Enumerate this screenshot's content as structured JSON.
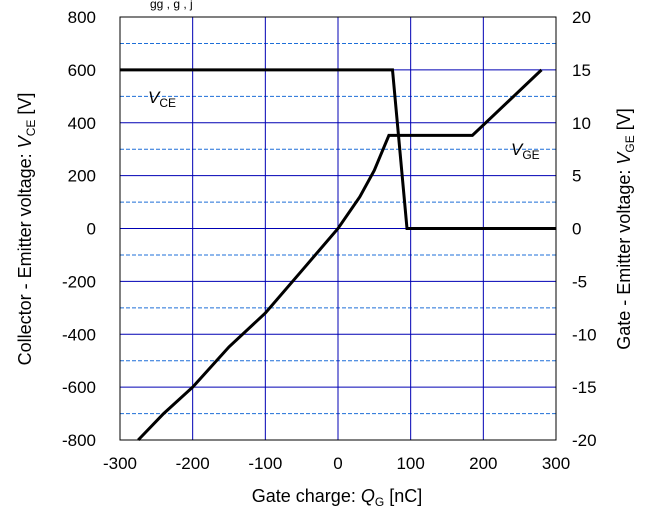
{
  "chart_data": {
    "type": "line",
    "title_fragment": "gg         ,  g          ,      j",
    "xlabel": {
      "prefix": "Gate charge: ",
      "symbol": "Q",
      "sub": "G",
      "unit": " [nC]"
    },
    "ylabel_left": {
      "prefix": "Collector - Emitter voltage: ",
      "symbol": "V",
      "sub": "CE",
      "unit": " [V]"
    },
    "ylabel_right": {
      "prefix": "Gate - Emitter voltage: ",
      "symbol": "V",
      "sub": "GE",
      "unit": " [V]"
    },
    "xlim": [
      -300,
      300
    ],
    "ylim_left": [
      -800,
      800
    ],
    "ylim_right": [
      -20,
      20
    ],
    "x_ticks": [
      "-300",
      "-200",
      "-100",
      "0",
      "100",
      "200",
      "300"
    ],
    "y_left_ticks": [
      "800",
      "600",
      "400",
      "200",
      "0",
      "-200",
      "-400",
      "-600",
      "-800"
    ],
    "y_right_ticks": [
      "20",
      "15",
      "10",
      "5",
      "0",
      "-5",
      "-10",
      "-15",
      "-20"
    ],
    "grid": true,
    "series": [
      {
        "name": "VCE",
        "label": {
          "symbol": "V",
          "sub": "CE"
        },
        "axis": "left",
        "color": "#000000",
        "points": [
          [
            -300,
            600
          ],
          [
            70,
            600
          ],
          [
            75,
            600
          ],
          [
            95,
            0
          ],
          [
            300,
            0
          ]
        ]
      },
      {
        "name": "VGE",
        "label": {
          "symbol": "V",
          "sub": "GE"
        },
        "axis": "right",
        "color": "#000000",
        "points": [
          [
            -275,
            -20
          ],
          [
            -240,
            -17.5
          ],
          [
            -200,
            -15
          ],
          [
            -150,
            -11.2
          ],
          [
            -100,
            -8
          ],
          [
            -50,
            -4
          ],
          [
            0,
            0
          ],
          [
            30,
            3
          ],
          [
            50,
            5.5
          ],
          [
            70,
            8.8
          ],
          [
            185,
            8.8
          ],
          [
            280,
            15
          ]
        ]
      }
    ],
    "colors": {
      "major_grid": "#0000b4",
      "minor_grid": "#1e6fd8",
      "lines": "#000000"
    }
  }
}
